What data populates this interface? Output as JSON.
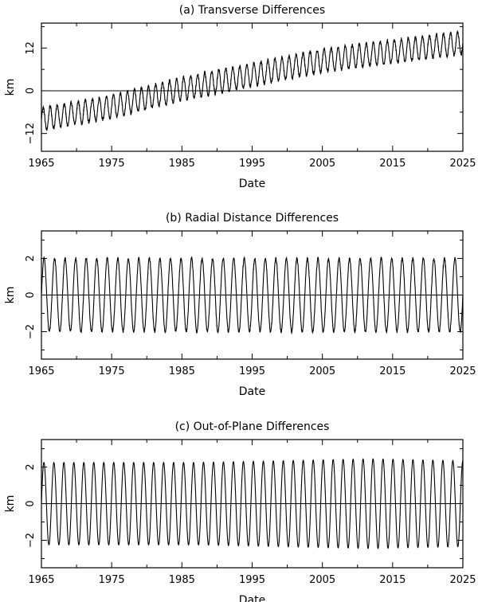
{
  "chart_data": [
    {
      "type": "line",
      "title": "(a) Transverse Differences",
      "xlabel": "Date",
      "ylabel": "km",
      "xlim": [
        1965,
        2025
      ],
      "ylim": [
        -17,
        19
      ],
      "xticks": [
        "1965",
        "1975",
        "1985",
        "1995",
        "2005",
        "2015",
        "2025"
      ],
      "yticks": [
        "−12",
        "0",
        "12"
      ],
      "yticks_rotated": true,
      "reference_line_y": 0,
      "series": [
        {
          "signal": {
            "trend": [
              [
                1965,
                -8
              ],
              [
                1975,
                -4.5
              ],
              [
                1985,
                0.5
              ],
              [
                1995,
                4.5
              ],
              [
                2005,
                8.5
              ],
              [
                2015,
                11
              ],
              [
                2025,
                13.5
              ]
            ],
            "amplitude": 3.2,
            "period_years": 1.0,
            "noise": 0.5
          }
        }
      ]
    },
    {
      "type": "line",
      "title": "(b) Radial Distance Differences",
      "xlabel": "Date",
      "ylabel": "km",
      "xlim": [
        1965,
        2025
      ],
      "ylim": [
        -3.5,
        3.5
      ],
      "xticks": [
        "1965",
        "1975",
        "1985",
        "1995",
        "2005",
        "2015",
        "2025"
      ],
      "yticks": [
        "−2",
        "0",
        "2"
      ],
      "yticks_rotated": true,
      "reference_line_y": 0,
      "series": [
        {
          "signal": {
            "trend": [
              [
                1965,
                0
              ],
              [
                2025,
                0
              ]
            ],
            "amplitude": 2.0,
            "period_years": 1.5,
            "noise": 0.08
          }
        }
      ]
    },
    {
      "type": "line",
      "title": "(c) Out-of-Plane Differences",
      "xlabel": "Date",
      "ylabel": "km",
      "xlim": [
        1965,
        2025
      ],
      "ylim": [
        -3.5,
        3.5
      ],
      "xticks": [
        "1965",
        "1975",
        "1985",
        "1995",
        "2005",
        "2015",
        "2025"
      ],
      "yticks": [
        "−2",
        "0",
        "2"
      ],
      "yticks_rotated": true,
      "reference_line_y": 0,
      "series": [
        {
          "signal": {
            "trend": [
              [
                1965,
                0
              ],
              [
                2025,
                0
              ]
            ],
            "amplitude": 2.25,
            "amplitude_peak": 2.45,
            "peak_year": 2012,
            "period_years": 1.42,
            "noise": 0
          }
        }
      ]
    }
  ]
}
